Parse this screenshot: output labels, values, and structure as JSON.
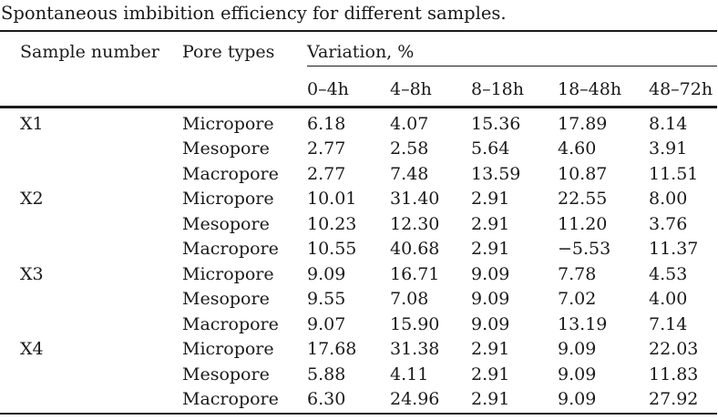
{
  "caption": "Spontaneous imbibition efficiency for different samples.",
  "table": {
    "headers": {
      "sample": "Sample number",
      "pore": "Pore types",
      "variation_group": "Variation, %",
      "times": [
        "0–4h",
        "4–8h",
        "8–18h",
        "18–48h",
        "48–72h"
      ]
    },
    "rows": [
      {
        "sample": "X1",
        "pore": "Micropore",
        "v": [
          "6.18",
          "4.07",
          "15.36",
          "17.89",
          "8.14"
        ]
      },
      {
        "sample": "",
        "pore": "Mesopore",
        "v": [
          "2.77",
          "2.58",
          "5.64",
          "4.60",
          "3.91"
        ]
      },
      {
        "sample": "",
        "pore": "Macropore",
        "v": [
          "2.77",
          "7.48",
          "13.59",
          "10.87",
          "11.51"
        ]
      },
      {
        "sample": "X2",
        "pore": "Micropore",
        "v": [
          "10.01",
          "31.40",
          "2.91",
          "22.55",
          "8.00"
        ]
      },
      {
        "sample": "",
        "pore": "Mesopore",
        "v": [
          "10.23",
          "12.30",
          "2.91",
          "11.20",
          "3.76"
        ]
      },
      {
        "sample": "",
        "pore": "Macropore",
        "v": [
          "10.55",
          "40.68",
          "2.91",
          "−5.53",
          "11.37"
        ]
      },
      {
        "sample": "X3",
        "pore": "Micropore",
        "v": [
          "9.09",
          "16.71",
          "9.09",
          "7.78",
          "4.53"
        ]
      },
      {
        "sample": "",
        "pore": "Mesopore",
        "v": [
          "9.55",
          "7.08",
          "9.09",
          "7.02",
          "4.00"
        ]
      },
      {
        "sample": "",
        "pore": "Macropore",
        "v": [
          "9.07",
          "15.90",
          "9.09",
          "13.19",
          "7.14"
        ]
      },
      {
        "sample": "X4",
        "pore": "Micropore",
        "v": [
          "17.68",
          "31.38",
          "2.91",
          "9.09",
          "22.03"
        ]
      },
      {
        "sample": "",
        "pore": "Mesopore",
        "v": [
          "5.88",
          "4.11",
          "2.91",
          "9.09",
          "11.83"
        ]
      },
      {
        "sample": "",
        "pore": "Macropore",
        "v": [
          "6.30",
          "24.96",
          "2.91",
          "9.09",
          "27.92"
        ]
      }
    ]
  }
}
